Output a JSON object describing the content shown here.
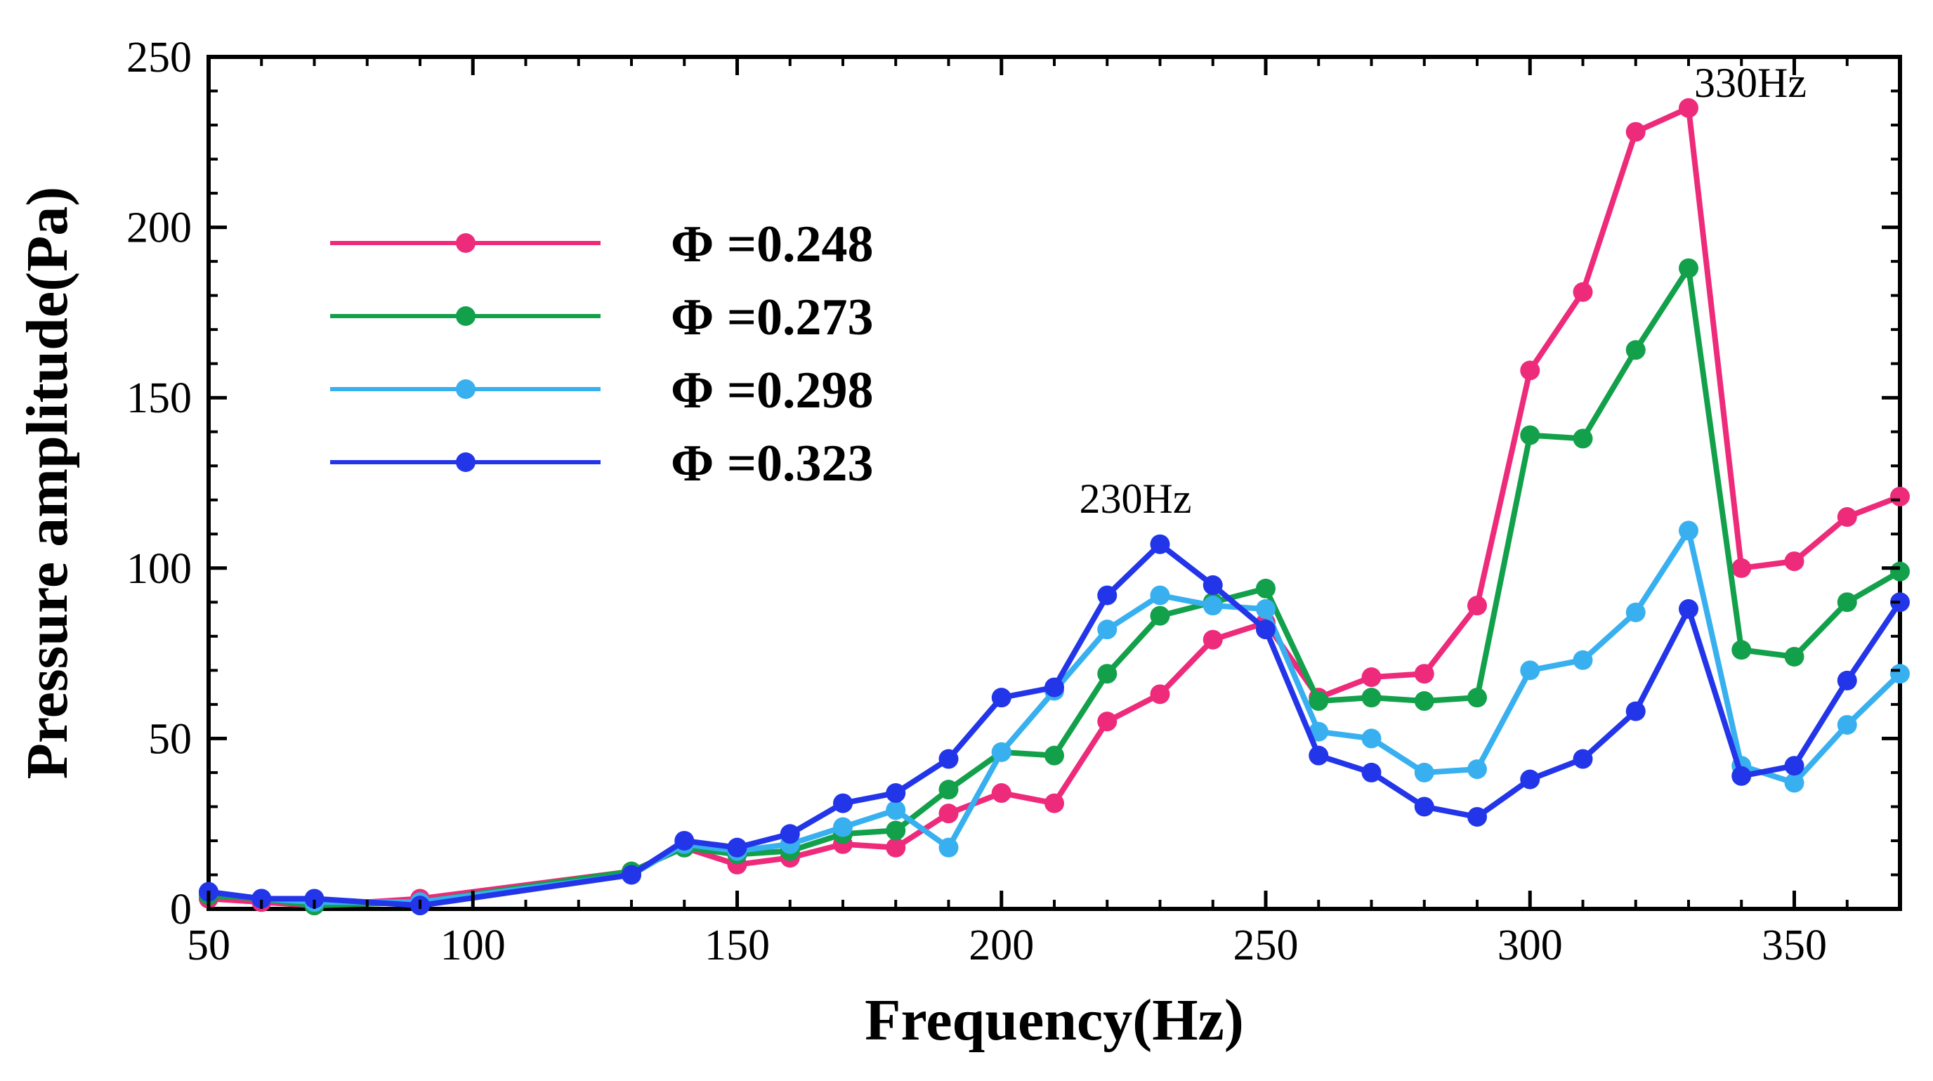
{
  "chart_data": {
    "type": "line",
    "title": "",
    "xlabel": "Frequency(Hz)",
    "ylabel": "Pressure amplitude(Pa)",
    "xlim": [
      50,
      370
    ],
    "ylim": [
      0,
      250
    ],
    "xticks": [
      50,
      100,
      150,
      200,
      250,
      300,
      350
    ],
    "yticks": [
      0,
      50,
      100,
      150,
      200,
      250
    ],
    "legend_position": "top-left",
    "grid": false,
    "x": [
      50,
      60,
      70,
      90,
      130,
      140,
      150,
      160,
      170,
      180,
      190,
      200,
      210,
      220,
      230,
      240,
      250,
      260,
      270,
      280,
      290,
      300,
      310,
      320,
      330,
      340,
      350,
      360,
      370
    ],
    "series": [
      {
        "name": "Φ =0.248",
        "color": "#ee2a7b",
        "values": [
          3,
          2,
          1,
          3,
          11,
          18,
          13,
          15,
          19,
          18,
          28,
          34,
          31,
          55,
          63,
          79,
          84,
          62,
          68,
          69,
          89,
          158,
          181,
          228,
          235,
          100,
          102,
          115,
          121
        ]
      },
      {
        "name": "Φ =0.273",
        "color": "#12a04a",
        "values": [
          4,
          3,
          1,
          2,
          11,
          18,
          16,
          17,
          22,
          23,
          35,
          46,
          45,
          69,
          86,
          90,
          94,
          61,
          62,
          61,
          62,
          139,
          138,
          164,
          188,
          76,
          74,
          90,
          99
        ]
      },
      {
        "name": "Φ =0.298",
        "color": "#38b0f0",
        "values": [
          5,
          3,
          2,
          2,
          10,
          19,
          17,
          19,
          24,
          29,
          18,
          46,
          64,
          82,
          92,
          89,
          88,
          52,
          50,
          40,
          41,
          70,
          73,
          87,
          111,
          42,
          37,
          54,
          69
        ]
      },
      {
        "name": "Φ =0.323",
        "color": "#2335e8",
        "values": [
          5,
          3,
          3,
          1,
          10,
          20,
          18,
          22,
          31,
          34,
          44,
          62,
          65,
          92,
          107,
          95,
          82,
          45,
          40,
          30,
          27,
          38,
          44,
          58,
          88,
          39,
          42,
          67,
          90
        ]
      }
    ],
    "annotations": [
      {
        "text": "230Hz",
        "x": 230,
        "y": 107
      },
      {
        "text": "330Hz",
        "x": 330,
        "y": 235
      }
    ]
  }
}
